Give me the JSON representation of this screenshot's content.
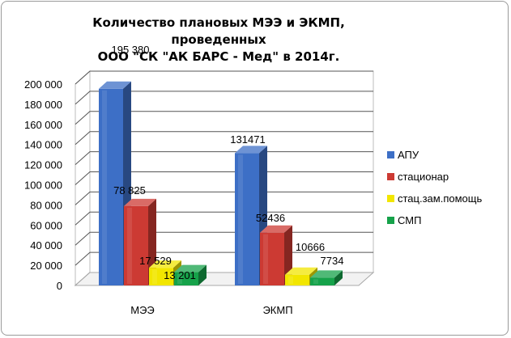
{
  "chart_data": {
    "type": "bar",
    "title_lines": [
      "Количество плановых МЭЭ и ЭКМП, проведенных",
      "ООО \"СК \"АК БАРС - Мед\" в 2014г."
    ],
    "categories": [
      "МЭЭ",
      "ЭКМП"
    ],
    "series": [
      {
        "name": "АПУ",
        "values": [
          195380,
          131471
        ],
        "labels": [
          "195 380",
          "131471"
        ],
        "color": "#3d6fc6"
      },
      {
        "name": "стационар",
        "values": [
          78825,
          52436
        ],
        "labels": [
          "78 825",
          "52436"
        ],
        "color": "#cc3a33"
      },
      {
        "name": "стац.зам.помощь",
        "values": [
          17529,
          10666
        ],
        "labels": [
          "17 529",
          "10666"
        ],
        "color": "#f2e600"
      },
      {
        "name": "СМП",
        "values": [
          13201,
          7734
        ],
        "labels": [
          "13 201",
          "7734"
        ],
        "color": "#16a24a"
      }
    ],
    "ylim": [
      0,
      200000
    ],
    "yticks": [
      0,
      20000,
      40000,
      60000,
      80000,
      100000,
      120000,
      140000,
      160000,
      180000,
      200000
    ],
    "ytick_labels": [
      "0",
      "20 000",
      "40 000",
      "60 000",
      "80 000",
      "100 000",
      "120 000",
      "140 000",
      "160 000",
      "180 000",
      "200 000"
    ],
    "grid": true,
    "legend_position": "right",
    "style": "3d-clustered-column"
  }
}
